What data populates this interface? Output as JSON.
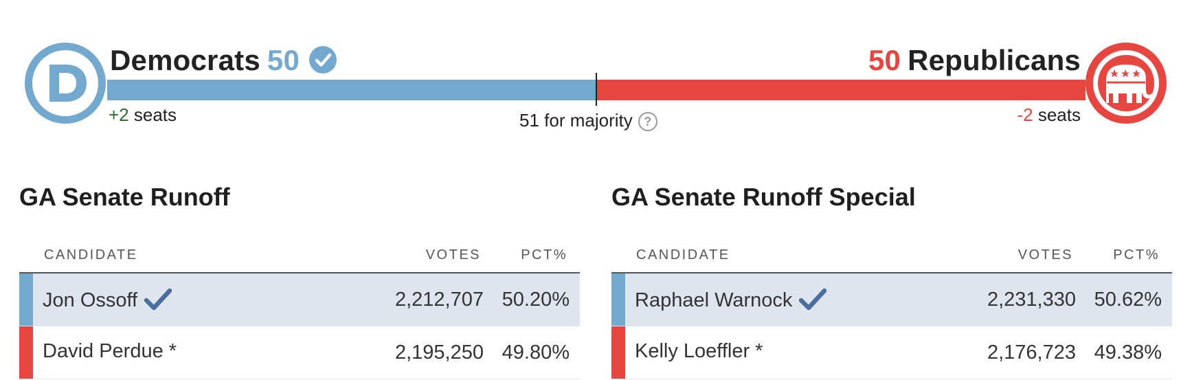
{
  "senate": {
    "democrats": {
      "label": "Democrats",
      "seats": "50",
      "change_sign": "+2",
      "change_suffix": " seats",
      "color": "#74a9cf"
    },
    "republicans": {
      "label": "Republicans",
      "seats": "50",
      "change_sign": "-2",
      "change_suffix": " seats",
      "color": "#e6463f"
    },
    "majority_label": "51 for majority",
    "dem_share": 0.5
  },
  "races": [
    {
      "title": "GA Senate Runoff",
      "columns": {
        "candidate": "CANDIDATE",
        "votes": "VOTES",
        "pct": "PCT%"
      },
      "rows": [
        {
          "name": "Jon Ossoff",
          "votes": "2,212,707",
          "pct": "50.20%",
          "party": "dem",
          "winner": true
        },
        {
          "name": "David Perdue *",
          "votes": "2,195,250",
          "pct": "49.80%",
          "party": "rep",
          "winner": false
        }
      ]
    },
    {
      "title": "GA Senate Runoff Special",
      "columns": {
        "candidate": "CANDIDATE",
        "votes": "VOTES",
        "pct": "PCT%"
      },
      "rows": [
        {
          "name": "Raphael Warnock",
          "votes": "2,231,330",
          "pct": "50.62%",
          "party": "dem",
          "winner": true
        },
        {
          "name": "Kelly Loeffler *",
          "votes": "2,176,723",
          "pct": "49.38%",
          "party": "rep",
          "winner": false
        }
      ]
    }
  ],
  "icons": {
    "dem_logo": "democrat-logo-icon",
    "rep_logo": "republican-elephant-logo-icon",
    "dem_check": "checkmark-circle-icon",
    "help": "question-circle-icon",
    "winner": "checkmark-icon"
  }
}
